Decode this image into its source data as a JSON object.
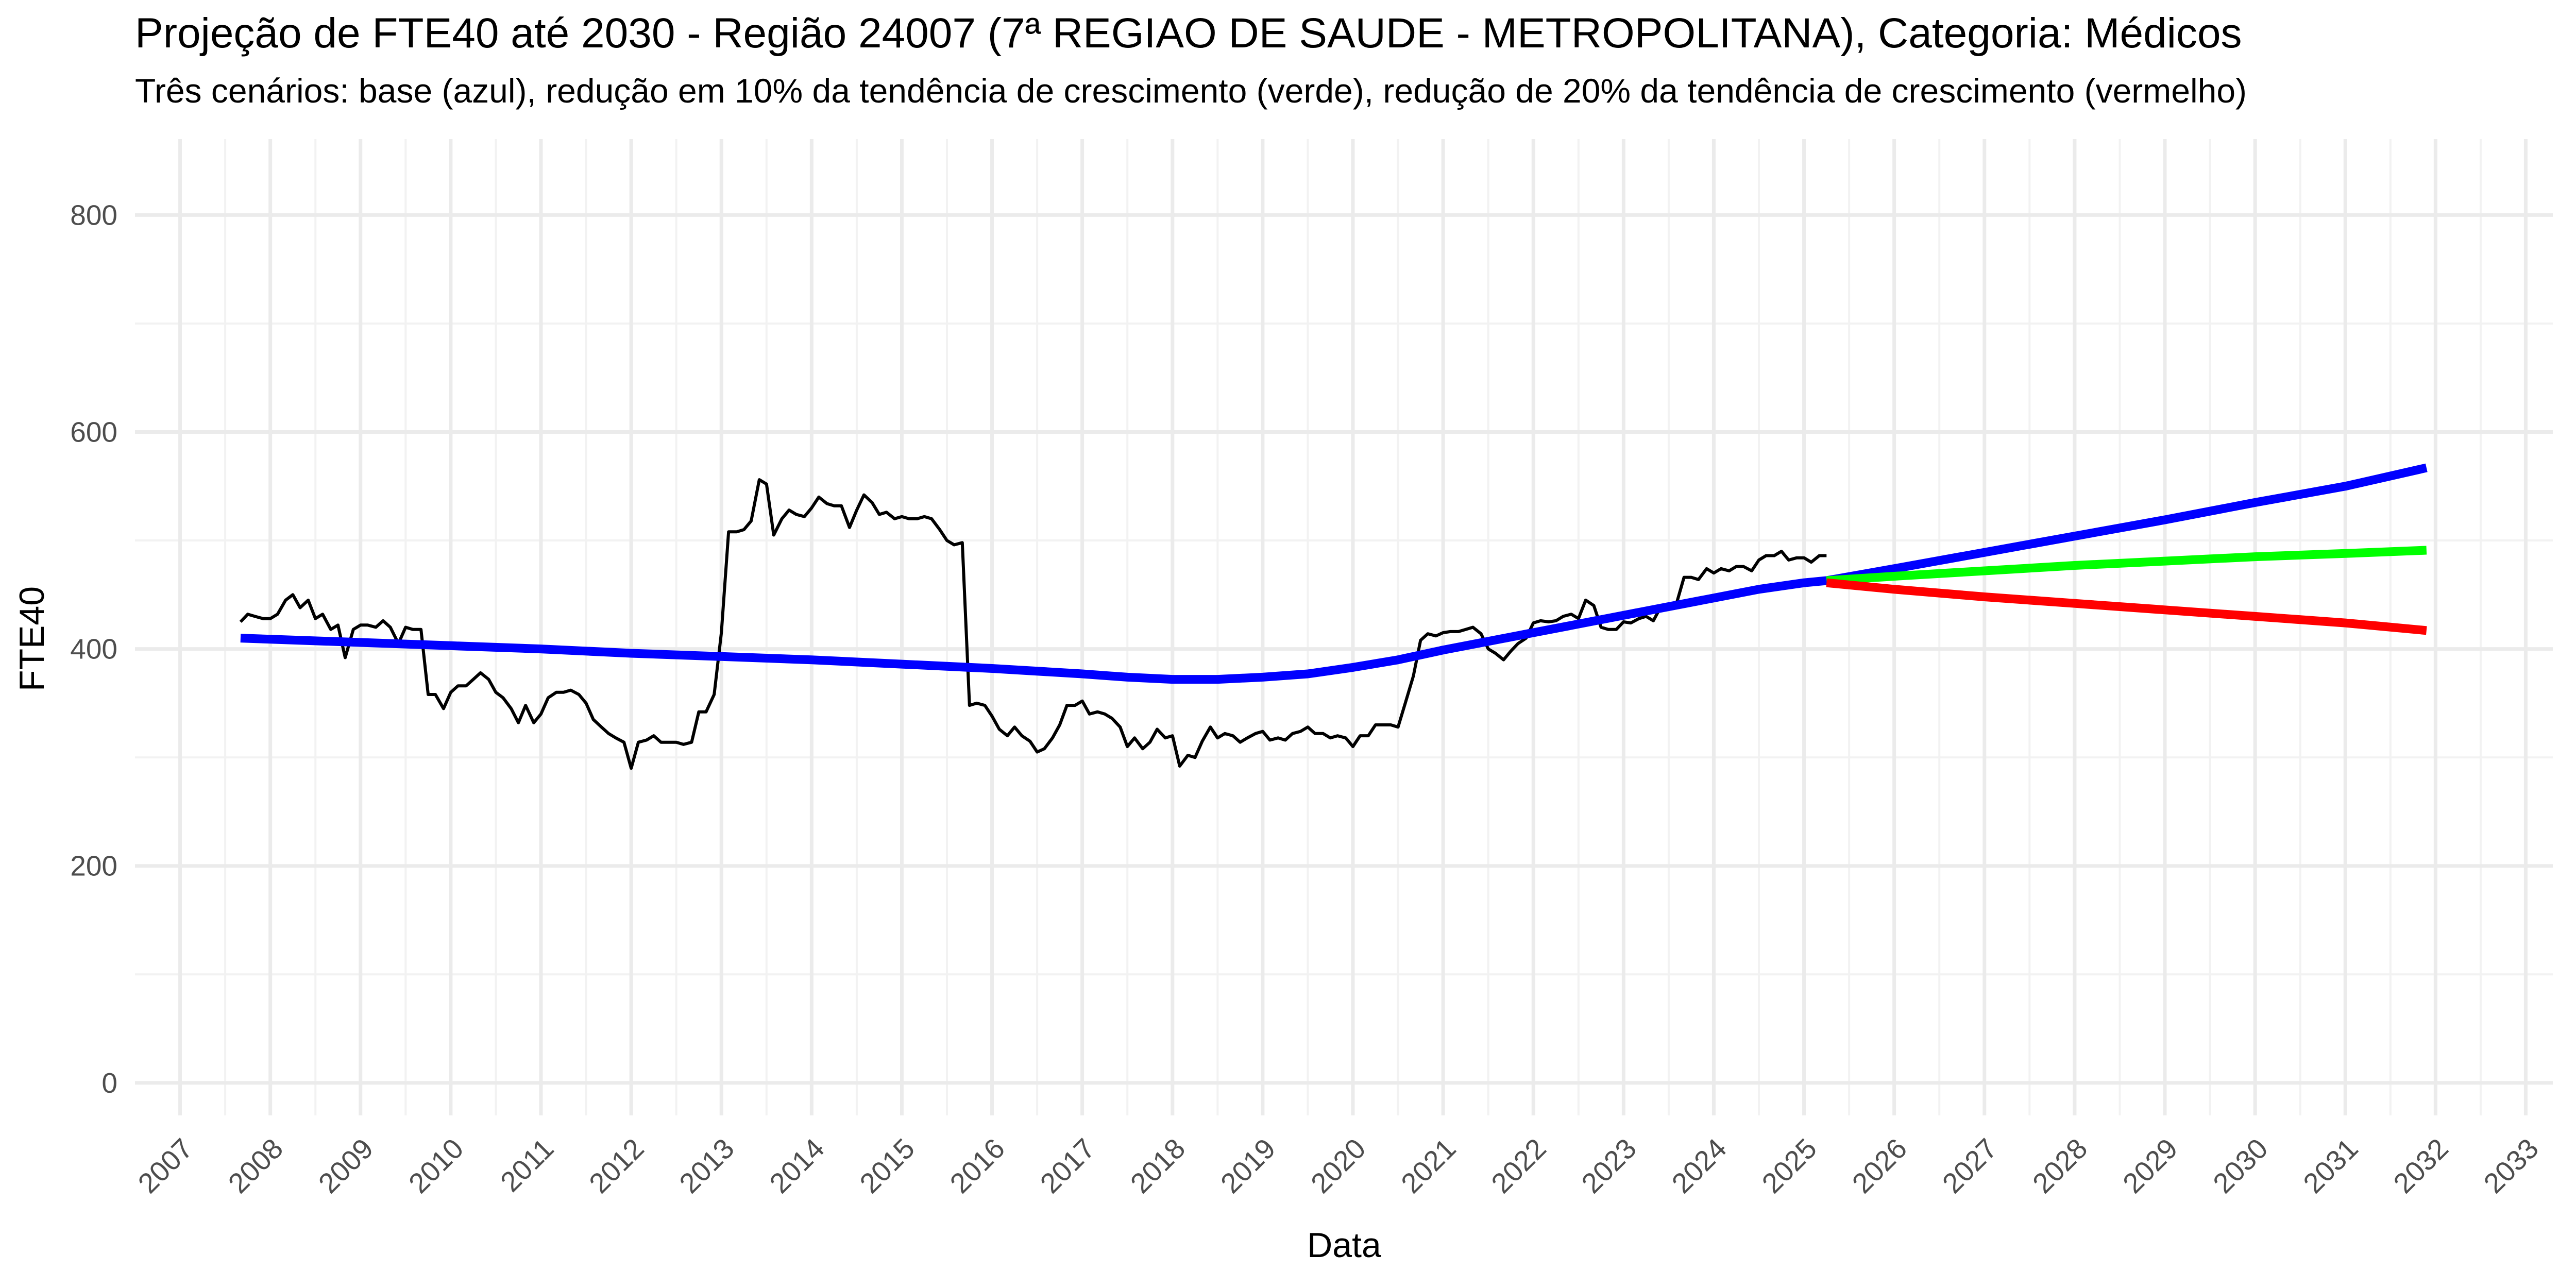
{
  "chart_data": {
    "type": "line",
    "title": "Projeção de FTE40 até 2030 - Região 24007 (7ª REGIAO DE SAUDE - METROPOLITANA), Categoria: Médicos",
    "subtitle": "Três cenários: base (azul), redução em 10% da tendência de crescimento (verde), redução de 20% da tendência de crescimento (vermelho)",
    "xlabel": "Data",
    "ylabel": "FTE40",
    "xlim": [
      2006.5,
      2033.3
    ],
    "ylim": [
      -30,
      870
    ],
    "y_ticks": [
      0,
      200,
      400,
      600,
      800
    ],
    "x_ticks": [
      "2007",
      "2008",
      "2009",
      "2010",
      "2011",
      "2012",
      "2013",
      "2014",
      "2015",
      "2016",
      "2017",
      "2018",
      "2019",
      "2020",
      "2021",
      "2022",
      "2023",
      "2024",
      "2025",
      "2026",
      "2027",
      "2028",
      "2029",
      "2030",
      "2031",
      "2032",
      "2033"
    ],
    "grid": true,
    "legend": "none",
    "series": [
      {
        "color": "#000000",
        "values": [
          [
            2007.67,
            425
          ],
          [
            2007.75,
            432
          ],
          [
            2007.83,
            430
          ],
          [
            2007.92,
            428
          ],
          [
            2008.0,
            428
          ],
          [
            2008.08,
            432
          ],
          [
            2008.17,
            445
          ],
          [
            2008.25,
            450
          ],
          [
            2008.33,
            438
          ],
          [
            2008.42,
            445
          ],
          [
            2008.5,
            428
          ],
          [
            2008.58,
            432
          ],
          [
            2008.67,
            418
          ],
          [
            2008.75,
            422
          ],
          [
            2008.83,
            392
          ],
          [
            2008.92,
            418
          ],
          [
            2009.0,
            422
          ],
          [
            2009.08,
            422
          ],
          [
            2009.17,
            420
          ],
          [
            2009.25,
            426
          ],
          [
            2009.33,
            420
          ],
          [
            2009.42,
            405
          ],
          [
            2009.5,
            420
          ],
          [
            2009.58,
            418
          ],
          [
            2009.67,
            418
          ],
          [
            2009.75,
            358
          ],
          [
            2009.83,
            358
          ],
          [
            2009.92,
            345
          ],
          [
            2010.0,
            360
          ],
          [
            2010.08,
            366
          ],
          [
            2010.17,
            366
          ],
          [
            2010.25,
            372
          ],
          [
            2010.33,
            378
          ],
          [
            2010.42,
            372
          ],
          [
            2010.5,
            360
          ],
          [
            2010.58,
            355
          ],
          [
            2010.67,
            345
          ],
          [
            2010.75,
            332
          ],
          [
            2010.83,
            348
          ],
          [
            2010.92,
            332
          ],
          [
            2011.0,
            340
          ],
          [
            2011.08,
            355
          ],
          [
            2011.17,
            360
          ],
          [
            2011.25,
            360
          ],
          [
            2011.33,
            362
          ],
          [
            2011.42,
            358
          ],
          [
            2011.5,
            350
          ],
          [
            2011.58,
            335
          ],
          [
            2011.67,
            328
          ],
          [
            2011.75,
            322
          ],
          [
            2011.83,
            318
          ],
          [
            2011.92,
            314
          ],
          [
            2012.0,
            290
          ],
          [
            2012.08,
            314
          ],
          [
            2012.17,
            316
          ],
          [
            2012.25,
            320
          ],
          [
            2012.33,
            314
          ],
          [
            2012.42,
            314
          ],
          [
            2012.5,
            314
          ],
          [
            2012.58,
            312
          ],
          [
            2012.67,
            314
          ],
          [
            2012.75,
            342
          ],
          [
            2012.83,
            342
          ],
          [
            2012.92,
            358
          ],
          [
            2013.0,
            415
          ],
          [
            2013.08,
            508
          ],
          [
            2013.17,
            508
          ],
          [
            2013.25,
            510
          ],
          [
            2013.33,
            518
          ],
          [
            2013.42,
            556
          ],
          [
            2013.5,
            552
          ],
          [
            2013.58,
            505
          ],
          [
            2013.67,
            520
          ],
          [
            2013.75,
            528
          ],
          [
            2013.83,
            524
          ],
          [
            2013.92,
            522
          ],
          [
            2014.0,
            530
          ],
          [
            2014.08,
            540
          ],
          [
            2014.17,
            534
          ],
          [
            2014.25,
            532
          ],
          [
            2014.33,
            532
          ],
          [
            2014.42,
            512
          ],
          [
            2014.5,
            528
          ],
          [
            2014.58,
            542
          ],
          [
            2014.67,
            535
          ],
          [
            2014.75,
            524
          ],
          [
            2014.83,
            526
          ],
          [
            2014.92,
            520
          ],
          [
            2015.0,
            522
          ],
          [
            2015.08,
            520
          ],
          [
            2015.17,
            520
          ],
          [
            2015.25,
            522
          ],
          [
            2015.33,
            520
          ],
          [
            2015.42,
            510
          ],
          [
            2015.5,
            500
          ],
          [
            2015.58,
            496
          ],
          [
            2015.67,
            498
          ],
          [
            2015.75,
            348
          ],
          [
            2015.83,
            350
          ],
          [
            2015.92,
            348
          ],
          [
            2016.0,
            338
          ],
          [
            2016.08,
            326
          ],
          [
            2016.17,
            320
          ],
          [
            2016.25,
            328
          ],
          [
            2016.33,
            320
          ],
          [
            2016.42,
            315
          ],
          [
            2016.5,
            305
          ],
          [
            2016.58,
            308
          ],
          [
            2016.67,
            318
          ],
          [
            2016.75,
            330
          ],
          [
            2016.83,
            348
          ],
          [
            2016.92,
            348
          ],
          [
            2017.0,
            352
          ],
          [
            2017.08,
            340
          ],
          [
            2017.17,
            342
          ],
          [
            2017.25,
            340
          ],
          [
            2017.33,
            336
          ],
          [
            2017.42,
            328
          ],
          [
            2017.5,
            310
          ],
          [
            2017.58,
            318
          ],
          [
            2017.67,
            308
          ],
          [
            2017.75,
            314
          ],
          [
            2017.83,
            326
          ],
          [
            2017.92,
            318
          ],
          [
            2018.0,
            320
          ],
          [
            2018.08,
            292
          ],
          [
            2018.17,
            302
          ],
          [
            2018.25,
            300
          ],
          [
            2018.33,
            315
          ],
          [
            2018.42,
            328
          ],
          [
            2018.5,
            318
          ],
          [
            2018.58,
            322
          ],
          [
            2018.67,
            320
          ],
          [
            2018.75,
            314
          ],
          [
            2018.83,
            318
          ],
          [
            2018.92,
            322
          ],
          [
            2019.0,
            324
          ],
          [
            2019.08,
            316
          ],
          [
            2019.17,
            318
          ],
          [
            2019.25,
            316
          ],
          [
            2019.33,
            322
          ],
          [
            2019.42,
            324
          ],
          [
            2019.5,
            328
          ],
          [
            2019.58,
            322
          ],
          [
            2019.67,
            322
          ],
          [
            2019.75,
            318
          ],
          [
            2019.83,
            320
          ],
          [
            2019.92,
            318
          ],
          [
            2020.0,
            310
          ],
          [
            2020.08,
            320
          ],
          [
            2020.17,
            320
          ],
          [
            2020.25,
            330
          ],
          [
            2020.33,
            330
          ],
          [
            2020.42,
            330
          ],
          [
            2020.5,
            328
          ],
          [
            2020.58,
            350
          ],
          [
            2020.67,
            375
          ],
          [
            2020.75,
            408
          ],
          [
            2020.83,
            414
          ],
          [
            2020.92,
            412
          ],
          [
            2021.0,
            415
          ],
          [
            2021.08,
            416
          ],
          [
            2021.17,
            416
          ],
          [
            2021.25,
            418
          ],
          [
            2021.33,
            420
          ],
          [
            2021.42,
            414
          ],
          [
            2021.5,
            400
          ],
          [
            2021.58,
            396
          ],
          [
            2021.67,
            390
          ],
          [
            2021.75,
            398
          ],
          [
            2021.83,
            405
          ],
          [
            2021.92,
            410
          ],
          [
            2022.0,
            424
          ],
          [
            2022.08,
            426
          ],
          [
            2022.17,
            425
          ],
          [
            2022.25,
            426
          ],
          [
            2022.33,
            430
          ],
          [
            2022.42,
            432
          ],
          [
            2022.5,
            428
          ],
          [
            2022.58,
            445
          ],
          [
            2022.67,
            440
          ],
          [
            2022.75,
            420
          ],
          [
            2022.83,
            418
          ],
          [
            2022.92,
            418
          ],
          [
            2023.0,
            425
          ],
          [
            2023.08,
            424
          ],
          [
            2023.17,
            428
          ],
          [
            2023.25,
            430
          ],
          [
            2023.33,
            426
          ],
          [
            2023.42,
            440
          ],
          [
            2023.5,
            440
          ],
          [
            2023.58,
            440
          ],
          [
            2023.67,
            466
          ],
          [
            2023.75,
            466
          ],
          [
            2023.83,
            464
          ],
          [
            2023.92,
            474
          ],
          [
            2024.0,
            470
          ],
          [
            2024.08,
            474
          ],
          [
            2024.17,
            472
          ],
          [
            2024.25,
            476
          ],
          [
            2024.33,
            476
          ],
          [
            2024.42,
            472
          ],
          [
            2024.5,
            482
          ],
          [
            2024.58,
            486
          ],
          [
            2024.67,
            486
          ],
          [
            2024.75,
            490
          ],
          [
            2024.83,
            482
          ],
          [
            2024.92,
            484
          ],
          [
            2025.0,
            484
          ],
          [
            2025.08,
            480
          ],
          [
            2025.17,
            486
          ],
          [
            2025.25,
            486
          ]
        ]
      },
      {
        "color": "#0000FF",
        "values": [
          [
            2007.67,
            410
          ],
          [
            2009.0,
            406
          ],
          [
            2010.0,
            403
          ],
          [
            2011.0,
            400
          ],
          [
            2012.0,
            396
          ],
          [
            2013.0,
            393
          ],
          [
            2014.0,
            390
          ],
          [
            2015.0,
            386
          ],
          [
            2016.0,
            382
          ],
          [
            2017.0,
            377
          ],
          [
            2017.5,
            374
          ],
          [
            2018.0,
            372
          ],
          [
            2018.5,
            372
          ],
          [
            2019.0,
            374
          ],
          [
            2019.5,
            377
          ],
          [
            2020.0,
            383
          ],
          [
            2020.5,
            390
          ],
          [
            2021.0,
            399
          ],
          [
            2021.5,
            407
          ],
          [
            2022.0,
            415
          ],
          [
            2022.5,
            423
          ],
          [
            2023.0,
            431
          ],
          [
            2023.5,
            439
          ],
          [
            2024.0,
            447
          ],
          [
            2024.5,
            455
          ],
          [
            2025.0,
            461
          ],
          [
            2025.25,
            463
          ],
          [
            2026.0,
            474
          ],
          [
            2027.0,
            489
          ],
          [
            2028.0,
            504
          ],
          [
            2029.0,
            519
          ],
          [
            2030.0,
            535
          ],
          [
            2031.0,
            550
          ],
          [
            2031.9,
            567
          ]
        ]
      },
      {
        "color": "#00FF00",
        "values": [
          [
            2025.25,
            463
          ],
          [
            2026.0,
            467
          ],
          [
            2027.0,
            472
          ],
          [
            2028.0,
            477
          ],
          [
            2029.0,
            481
          ],
          [
            2030.0,
            485
          ],
          [
            2031.0,
            488
          ],
          [
            2031.9,
            491
          ]
        ]
      },
      {
        "color": "#FF0000",
        "values": [
          [
            2025.25,
            461
          ],
          [
            2026.0,
            455
          ],
          [
            2027.0,
            448
          ],
          [
            2028.0,
            442
          ],
          [
            2029.0,
            436
          ],
          [
            2030.0,
            430
          ],
          [
            2031.0,
            424
          ],
          [
            2031.9,
            417
          ]
        ]
      }
    ]
  }
}
